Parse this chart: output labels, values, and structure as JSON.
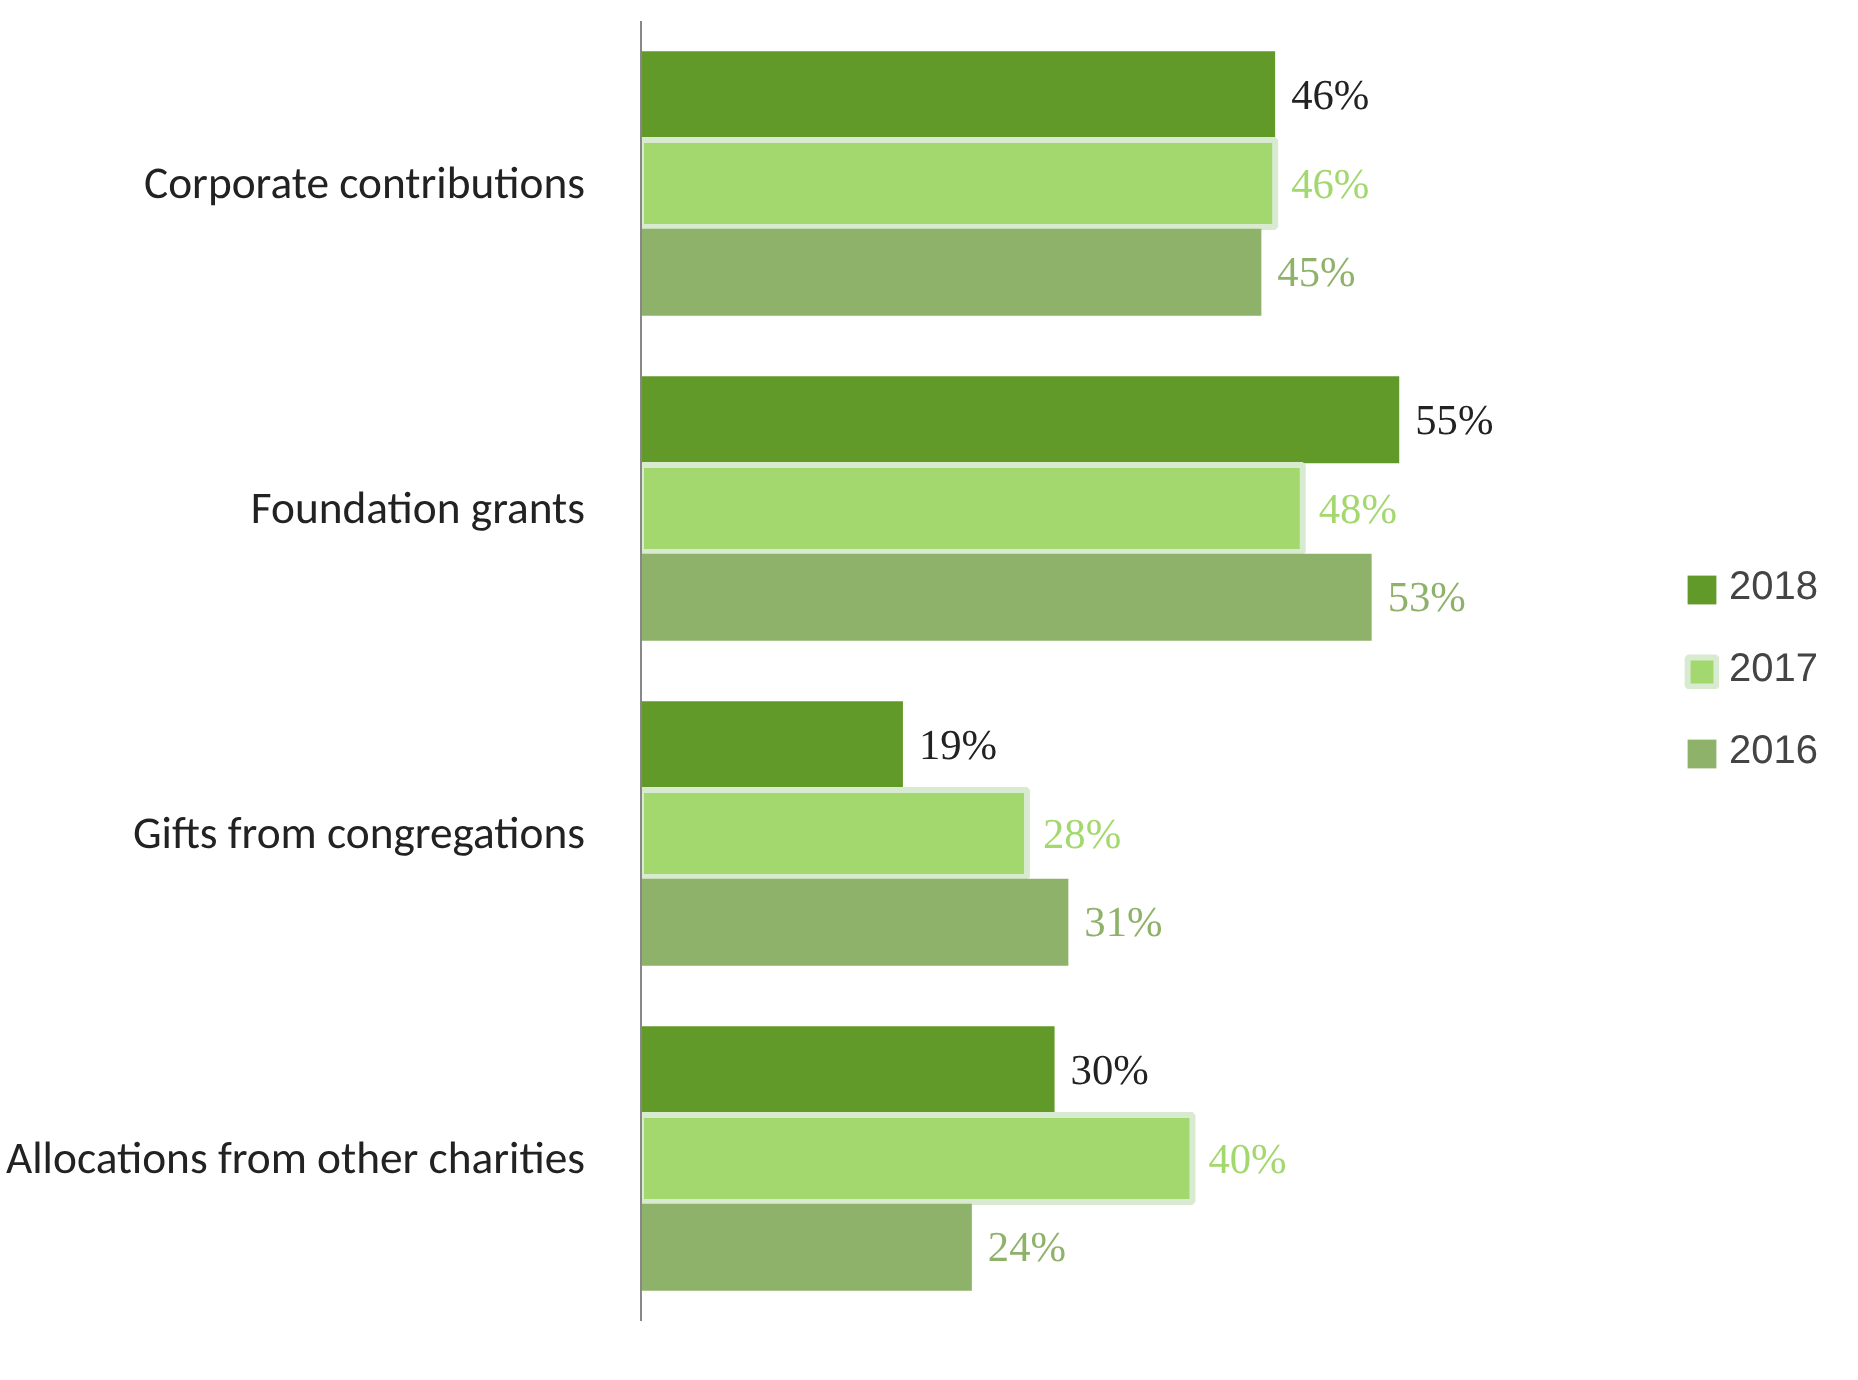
{
  "chart_data": {
    "type": "bar",
    "orientation": "horizontal",
    "categories": [
      "Corporate contributions",
      "Foundation grants",
      "Gifts from congregations",
      "Allocations from other charities"
    ],
    "series": [
      {
        "name": "2018",
        "color": "#629a29",
        "values": [
          46,
          55,
          19,
          30
        ],
        "value_labels": [
          "46%",
          "55%",
          "19%",
          "30%"
        ]
      },
      {
        "name": "2017",
        "color": "#a3d86e",
        "values": [
          46,
          48,
          28,
          40
        ],
        "value_labels": [
          "46%",
          "48%",
          "28%",
          "40%"
        ]
      },
      {
        "name": "2016",
        "color": "#8fb26a",
        "values": [
          45,
          53,
          31,
          24
        ],
        "value_labels": [
          "45%",
          "53%",
          "31%",
          "24%"
        ]
      }
    ],
    "legend": "right",
    "grid": false
  }
}
